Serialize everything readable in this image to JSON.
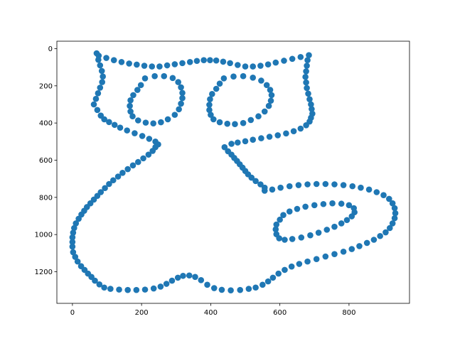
{
  "chart_data": {
    "type": "scatter",
    "title": "",
    "xlabel": "",
    "ylabel": "",
    "xlim": [
      -45,
      975
    ],
    "ylim": [
      1370,
      -40
    ],
    "y_inverted": true,
    "x_ticks": [
      0,
      200,
      400,
      600,
      800
    ],
    "y_ticks": [
      0,
      200,
      400,
      600,
      800,
      1000,
      1200
    ],
    "grid": false,
    "legend": "none",
    "marker_color": "#1f77b4",
    "series": [
      {
        "values": [
          [
            70,
            25
          ],
          [
            75,
            60
          ],
          [
            80,
            90
          ],
          [
            85,
            120
          ],
          [
            88,
            150
          ],
          [
            86,
            180
          ],
          [
            80,
            210
          ],
          [
            74,
            240
          ],
          [
            68,
            270
          ],
          [
            62,
            300
          ],
          [
            72,
            330
          ],
          [
            82,
            360
          ],
          [
            92,
            380
          ],
          [
            106,
            395
          ],
          [
            122,
            410
          ],
          [
            138,
            425
          ],
          [
            158,
            440
          ],
          [
            180,
            455
          ],
          [
            202,
            470
          ],
          [
            222,
            485
          ],
          [
            240,
            500
          ],
          [
            248,
            515
          ],
          [
            240,
            530
          ],
          [
            232,
            550
          ],
          [
            220,
            570
          ],
          [
            205,
            590
          ],
          [
            190,
            610
          ],
          [
            175,
            628
          ],
          [
            160,
            648
          ],
          [
            145,
            668
          ],
          [
            132,
            688
          ],
          [
            118,
            708
          ],
          [
            106,
            728
          ],
          [
            94,
            750
          ],
          [
            82,
            772
          ],
          [
            72,
            792
          ],
          [
            62,
            812
          ],
          [
            52,
            832
          ],
          [
            42,
            852
          ],
          [
            34,
            872
          ],
          [
            26,
            892
          ],
          [
            18,
            915
          ],
          [
            10,
            940
          ],
          [
            5,
            965
          ],
          [
            2,
            990
          ],
          [
            0,
            1015
          ],
          [
            0,
            1040
          ],
          [
            0,
            1065
          ],
          [
            2,
            1095
          ],
          [
            8,
            1120
          ],
          [
            15,
            1145
          ],
          [
            25,
            1170
          ],
          [
            35,
            1190
          ],
          [
            45,
            1210
          ],
          [
            55,
            1228
          ],
          [
            65,
            1248
          ],
          [
            78,
            1268
          ],
          [
            92,
            1285
          ],
          [
            110,
            1292
          ],
          [
            135,
            1296
          ],
          [
            160,
            1298
          ],
          [
            185,
            1298
          ],
          [
            210,
            1296
          ],
          [
            235,
            1290
          ],
          [
            255,
            1280
          ],
          [
            272,
            1265
          ],
          [
            288,
            1248
          ],
          [
            305,
            1232
          ],
          [
            320,
            1222
          ],
          [
            338,
            1220
          ],
          [
            355,
            1228
          ],
          [
            372,
            1245
          ],
          [
            390,
            1270
          ],
          [
            410,
            1288
          ],
          [
            432,
            1297
          ],
          [
            458,
            1300
          ],
          [
            485,
            1298
          ],
          [
            510,
            1292
          ],
          [
            530,
            1285
          ],
          [
            550,
            1270
          ],
          [
            566,
            1252
          ],
          [
            580,
            1232
          ],
          [
            596,
            1210
          ],
          [
            614,
            1190
          ],
          [
            634,
            1172
          ],
          [
            656,
            1158
          ],
          [
            680,
            1145
          ],
          [
            706,
            1132
          ],
          [
            732,
            1118
          ],
          [
            758,
            1105
          ],
          [
            784,
            1092
          ],
          [
            808,
            1078
          ],
          [
            830,
            1062
          ],
          [
            852,
            1045
          ],
          [
            872,
            1028
          ],
          [
            890,
            1008
          ],
          [
            906,
            988
          ],
          [
            918,
            965
          ],
          [
            926,
            940
          ],
          [
            932,
            912
          ],
          [
            934,
            885
          ],
          [
            932,
            858
          ],
          [
            926,
            832
          ],
          [
            916,
            808
          ],
          [
            900,
            788
          ],
          [
            880,
            772
          ],
          [
            858,
            758
          ],
          [
            834,
            748
          ],
          [
            810,
            740
          ],
          [
            784,
            734
          ],
          [
            758,
            730
          ],
          [
            732,
            728
          ],
          [
            706,
            728
          ],
          [
            680,
            730
          ],
          [
            654,
            734
          ],
          [
            628,
            740
          ],
          [
            602,
            748
          ],
          [
            578,
            758
          ],
          [
            556,
            764
          ],
          [
            556,
            748
          ],
          [
            544,
            730
          ],
          [
            530,
            712
          ],
          [
            518,
            694
          ],
          [
            508,
            676
          ],
          [
            500,
            658
          ],
          [
            492,
            640
          ],
          [
            484,
            622
          ],
          [
            476,
            604
          ],
          [
            468,
            588
          ],
          [
            460,
            570
          ],
          [
            450,
            552
          ],
          [
            440,
            530
          ],
          [
            460,
            512
          ],
          [
            478,
            505
          ],
          [
            500,
            498
          ],
          [
            522,
            490
          ],
          [
            546,
            482
          ],
          [
            570,
            474
          ],
          [
            594,
            466
          ],
          [
            618,
            456
          ],
          [
            640,
            444
          ],
          [
            660,
            430
          ],
          [
            676,
            412
          ],
          [
            686,
            392
          ],
          [
            690,
            372
          ],
          [
            694,
            350
          ],
          [
            692,
            325
          ],
          [
            690,
            300
          ],
          [
            686,
            272
          ],
          [
            682,
            242
          ],
          [
            678,
            212
          ],
          [
            676,
            182
          ],
          [
            674,
            152
          ],
          [
            676,
            122
          ],
          [
            678,
            92
          ],
          [
            680,
            62
          ],
          [
            684,
            35
          ],
          [
            660,
            45
          ],
          [
            636,
            55
          ],
          [
            612,
            65
          ],
          [
            588,
            75
          ],
          [
            566,
            85
          ],
          [
            544,
            92
          ],
          [
            522,
            96
          ],
          [
            500,
            96
          ],
          [
            478,
            88
          ],
          [
            456,
            78
          ],
          [
            436,
            70
          ],
          [
            416,
            64
          ],
          [
            398,
            62
          ],
          [
            380,
            62
          ],
          [
            360,
            66
          ],
          [
            340,
            72
          ],
          [
            318,
            78
          ],
          [
            296,
            84
          ],
          [
            274,
            90
          ],
          [
            252,
            96
          ],
          [
            230,
            96
          ],
          [
            208,
            92
          ],
          [
            186,
            86
          ],
          [
            164,
            80
          ],
          [
            142,
            72
          ],
          [
            120,
            62
          ],
          [
            98,
            50
          ],
          [
            76,
            38
          ],
          [
            210,
            160
          ],
          [
            238,
            148
          ],
          [
            265,
            148
          ],
          [
            290,
            158
          ],
          [
            306,
            180
          ],
          [
            314,
            208
          ],
          [
            318,
            238
          ],
          [
            318,
            266
          ],
          [
            314,
            296
          ],
          [
            308,
            326
          ],
          [
            296,
            356
          ],
          [
            276,
            380
          ],
          [
            256,
            396
          ],
          [
            234,
            402
          ],
          [
            212,
            398
          ],
          [
            190,
            386
          ],
          [
            174,
            364
          ],
          [
            168,
            338
          ],
          [
            166,
            308
          ],
          [
            168,
            278
          ],
          [
            176,
            250
          ],
          [
            188,
            222
          ],
          [
            198,
            196
          ],
          [
            438,
            160
          ],
          [
            466,
            150
          ],
          [
            494,
            148
          ],
          [
            522,
            156
          ],
          [
            546,
            172
          ],
          [
            562,
            196
          ],
          [
            572,
            222
          ],
          [
            576,
            250
          ],
          [
            574,
            280
          ],
          [
            568,
            308
          ],
          [
            556,
            338
          ],
          [
            538,
            364
          ],
          [
            516,
            384
          ],
          [
            494,
            400
          ],
          [
            470,
            406
          ],
          [
            448,
            404
          ],
          [
            426,
            396
          ],
          [
            408,
            380
          ],
          [
            400,
            356
          ],
          [
            396,
            330
          ],
          [
            396,
            302
          ],
          [
            398,
            272
          ],
          [
            404,
            244
          ],
          [
            416,
            216
          ],
          [
            426,
            188
          ],
          [
            600,
            920
          ],
          [
            610,
            895
          ],
          [
            628,
            876
          ],
          [
            650,
            862
          ],
          [
            674,
            850
          ],
          [
            700,
            842
          ],
          [
            726,
            836
          ],
          [
            752,
            832
          ],
          [
            778,
            834
          ],
          [
            800,
            842
          ],
          [
            814,
            858
          ],
          [
            816,
            880
          ],
          [
            808,
            902
          ],
          [
            794,
            922
          ],
          [
            778,
            940
          ],
          [
            758,
            958
          ],
          [
            736,
            974
          ],
          [
            712,
            990
          ],
          [
            688,
            1004
          ],
          [
            662,
            1016
          ],
          [
            636,
            1024
          ],
          [
            614,
            1028
          ],
          [
            598,
            1020
          ],
          [
            590,
            998
          ],
          [
            588,
            972
          ],
          [
            590,
            946
          ]
        ]
      }
    ]
  }
}
